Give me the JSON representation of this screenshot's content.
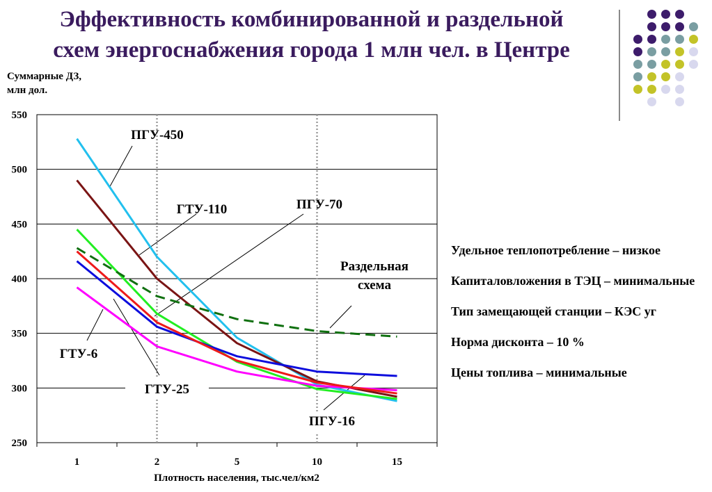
{
  "title": {
    "line1": "Эффективность комбинированной и раздельной",
    "line2": "схем энергоснабжения города 1 млн чел. в Центре"
  },
  "colors": {
    "title": "#3a1b5e",
    "dot_purple": "#3d1c6b",
    "dot_teal": "#7a9ea2",
    "dot_yellow": "#c3c328",
    "dot_lavender": "#d8d8ee"
  },
  "notes": [
    "Удельное теплопотребление – низкое",
    "Капиталовложения в ТЭЦ – минимальные",
    "Тип замещающей станции – КЭС уг",
    "Норма дисконта – 10 %",
    "Цены топлива – минимальные"
  ],
  "chart_data": {
    "type": "line",
    "ylabel": "Суммарные ДЗ, млн дол.",
    "xlabel": "Плотность населения, тыс.чел/км2",
    "categories": [
      "1",
      "2",
      "5",
      "10",
      "15"
    ],
    "ylim": [
      250,
      550
    ],
    "yticks": [
      "550",
      "500",
      "450",
      "400",
      "350",
      "300",
      "250"
    ],
    "grid": "horizontal",
    "vertical_markers": [
      "2",
      "10"
    ],
    "series": [
      {
        "name": "ПГУ-450",
        "color": "#22c0ee",
        "dash": "none",
        "values": [
          528,
          420,
          346,
          303,
          288
        ]
      },
      {
        "name": "ГТУ-110",
        "color": "#7a1414",
        "dash": "none",
        "values": [
          490,
          400,
          341,
          306,
          292
        ]
      },
      {
        "name": "ПГУ-70",
        "color": "#22ee22",
        "dash": "none",
        "values": [
          445,
          368,
          324,
          299,
          290
        ]
      },
      {
        "name": "Раздельная схема",
        "color": "#107010",
        "dash": "dashed",
        "values": [
          428,
          384,
          363,
          352,
          347
        ]
      },
      {
        "name": "ГТУ-6",
        "color": "#ff00ff",
        "dash": "none",
        "values": [
          392,
          338,
          315,
          302,
          298
        ]
      },
      {
        "name": "ГТУ-25",
        "color": "#0d0ddd",
        "dash": "none",
        "values": [
          416,
          356,
          329,
          315,
          311
        ]
      },
      {
        "name": "ПГУ-16",
        "color": "#ee1a1a",
        "dash": "none",
        "values": [
          425,
          360,
          325,
          305,
          295
        ]
      }
    ],
    "annotations": [
      {
        "label": "ПГУ-450"
      },
      {
        "label": "ГТУ-110"
      },
      {
        "label": "ПГУ-70"
      },
      {
        "label": "Раздельная"
      },
      {
        "label": "схема"
      },
      {
        "label": "ГТУ-6"
      },
      {
        "label": "ГТУ-25"
      },
      {
        "label": "ПГУ-16"
      }
    ]
  }
}
